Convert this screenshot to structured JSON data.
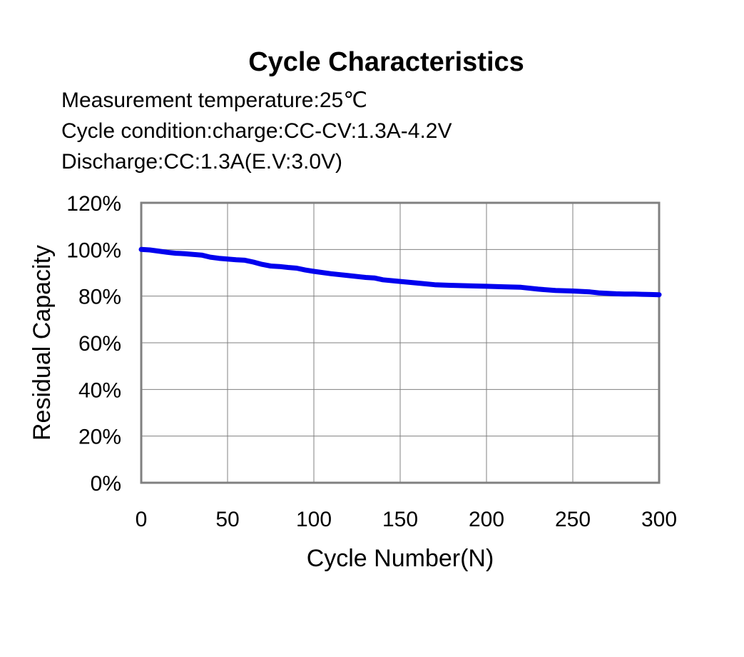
{
  "header": {
    "title": "Cycle Characteristics",
    "conditions": [
      "Measurement temperature:25℃",
      "Cycle condition:charge:CC-CV:1.3A-4.2V",
      "Discharge:CC:1.3A(E.V:3.0V)"
    ]
  },
  "colors": {
    "series": "#0000ee",
    "grid": "#808080",
    "frame": "#808080"
  },
  "chart_data": {
    "type": "line",
    "title": "Cycle Characteristics",
    "xlabel": "Cycle Number(N)",
    "ylabel": "Residual Capacity",
    "xlim": [
      0,
      300
    ],
    "ylim": [
      0,
      120
    ],
    "x_ticks": [
      0,
      50,
      100,
      150,
      200,
      250,
      300
    ],
    "y_ticks": [
      0,
      20,
      40,
      60,
      80,
      100,
      120
    ],
    "y_tick_labels": [
      "0%",
      "20%",
      "40%",
      "60%",
      "80%",
      "100%",
      "120%"
    ],
    "grid": true,
    "legend": "none",
    "series": [
      {
        "x": [
          0,
          5,
          10,
          15,
          20,
          25,
          30,
          35,
          40,
          45,
          50,
          55,
          60,
          65,
          70,
          75,
          80,
          85,
          90,
          95,
          100,
          110,
          120,
          130,
          135,
          140,
          150,
          160,
          170,
          180,
          190,
          200,
          210,
          220,
          230,
          240,
          250,
          260,
          265,
          270,
          275,
          280,
          285,
          290,
          295,
          300
        ],
        "values": [
          100,
          99.8,
          99.3,
          98.8,
          98.4,
          98.2,
          97.9,
          97.6,
          96.7,
          96.2,
          95.9,
          95.6,
          95.4,
          94.6,
          93.6,
          92.9,
          92.7,
          92.3,
          92.0,
          91.2,
          90.6,
          89.6,
          88.8,
          88.0,
          87.8,
          87.0,
          86.3,
          85.6,
          84.9,
          84.6,
          84.4,
          84.2,
          84.0,
          83.8,
          83.0,
          82.4,
          82.2,
          81.8,
          81.4,
          81.2,
          81.0,
          80.9,
          80.9,
          80.8,
          80.7,
          80.6
        ]
      }
    ]
  }
}
